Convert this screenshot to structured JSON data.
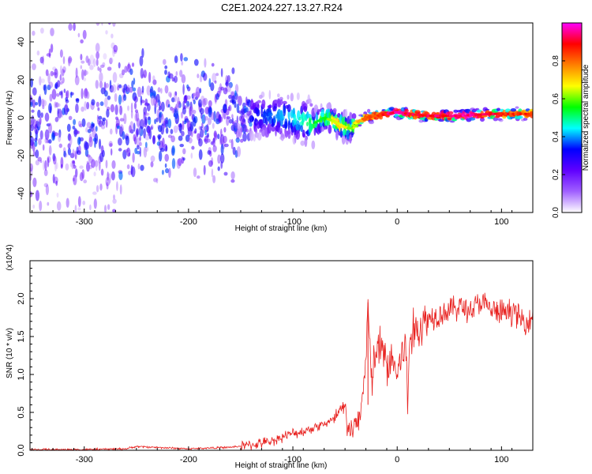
{
  "figure_title": "C2E1.2024.227.13.27.R24",
  "chart_data": [
    {
      "type": "heatmap",
      "title": "C2E1.2024.227.13.27.R24",
      "xlabel": "Height of straight line (km)",
      "ylabel": "Frequency (Hz)",
      "xlim": [
        -352,
        130
      ],
      "ylim": [
        -50,
        50
      ],
      "xticks": [
        -300,
        -200,
        -100,
        0,
        100
      ],
      "yticks": [
        -40,
        -20,
        0,
        20,
        40
      ],
      "colorbar": {
        "label": "Normalized spectral amplitude",
        "range": [
          0,
          1
        ],
        "ticks": [
          0.0,
          0.2,
          0.4,
          0.6,
          0.8
        ],
        "tick_labels": [
          "0.0",
          "0.2",
          "0.4",
          "0.6",
          "0.8"
        ],
        "colormap": [
          "#ffffff",
          "#a060ff",
          "#6000ff",
          "#0000ff",
          "#00ffff",
          "#00ff00",
          "#ffff00",
          "#ff8000",
          "#ff0000",
          "#ff00ff"
        ]
      },
      "ridge": {
        "x": [
          -230,
          -180,
          -130,
          -100,
          -90,
          -80,
          -70,
          -60,
          -50,
          -45,
          -40,
          -30,
          -20,
          -10,
          0,
          10,
          30,
          60,
          90,
          110,
          130
        ],
        "frequency": [
          -1,
          0,
          1,
          0,
          -2,
          -3,
          0,
          -2,
          -5,
          -6,
          -3,
          0,
          1,
          2,
          3,
          2,
          1,
          1,
          2,
          2,
          2
        ],
        "peak_amplitude": [
          0.25,
          0.3,
          0.35,
          0.45,
          0.5,
          0.55,
          0.6,
          0.7,
          0.75,
          0.6,
          0.7,
          0.85,
          0.9,
          0.95,
          1.0,
          0.95,
          0.95,
          1.0,
          0.95,
          0.9,
          0.9
        ]
      },
      "grid": false
    },
    {
      "type": "line",
      "xlabel": "Height of straight line (km)",
      "ylabel": "SNR (10 * v/v)",
      "y_multiplier": "(x10^4)",
      "xlim": [
        -352,
        130
      ],
      "ylim": [
        0,
        2.5
      ],
      "xticks": [
        -300,
        -200,
        -100,
        0,
        100
      ],
      "yticks": [
        0.0,
        0.5,
        1.0,
        1.5,
        2.0
      ],
      "ytick_labels": [
        "0.0",
        "0.5",
        "1.0",
        "1.5",
        "2.0"
      ],
      "line_color": "#e8201e",
      "series": [
        {
          "x": [
            -352,
            -300,
            -260,
            -250,
            -200,
            -160,
            -140,
            -120,
            -110,
            -100,
            -90,
            -80,
            -70,
            -60,
            -55,
            -50,
            -48,
            -45,
            -40,
            -35,
            -30,
            -28,
            -25,
            -20,
            -15,
            -10,
            -5,
            0,
            5,
            8,
            10,
            12,
            20,
            30,
            40,
            50,
            60,
            70,
            80,
            90,
            100,
            110,
            120,
            130
          ],
          "values": [
            0.01,
            0.01,
            0.02,
            0.05,
            0.02,
            0.04,
            0.07,
            0.12,
            0.18,
            0.22,
            0.25,
            0.3,
            0.35,
            0.4,
            0.5,
            0.55,
            0.35,
            0.25,
            0.3,
            0.5,
            1.2,
            1.95,
            0.9,
            1.3,
            1.35,
            1.1,
            1.2,
            1.0,
            1.3,
            1.4,
            0.55,
            1.5,
            1.6,
            1.75,
            1.8,
            1.85,
            1.9,
            1.85,
            1.95,
            1.85,
            1.8,
            1.85,
            1.7,
            1.75
          ]
        }
      ],
      "grid": false
    }
  ]
}
